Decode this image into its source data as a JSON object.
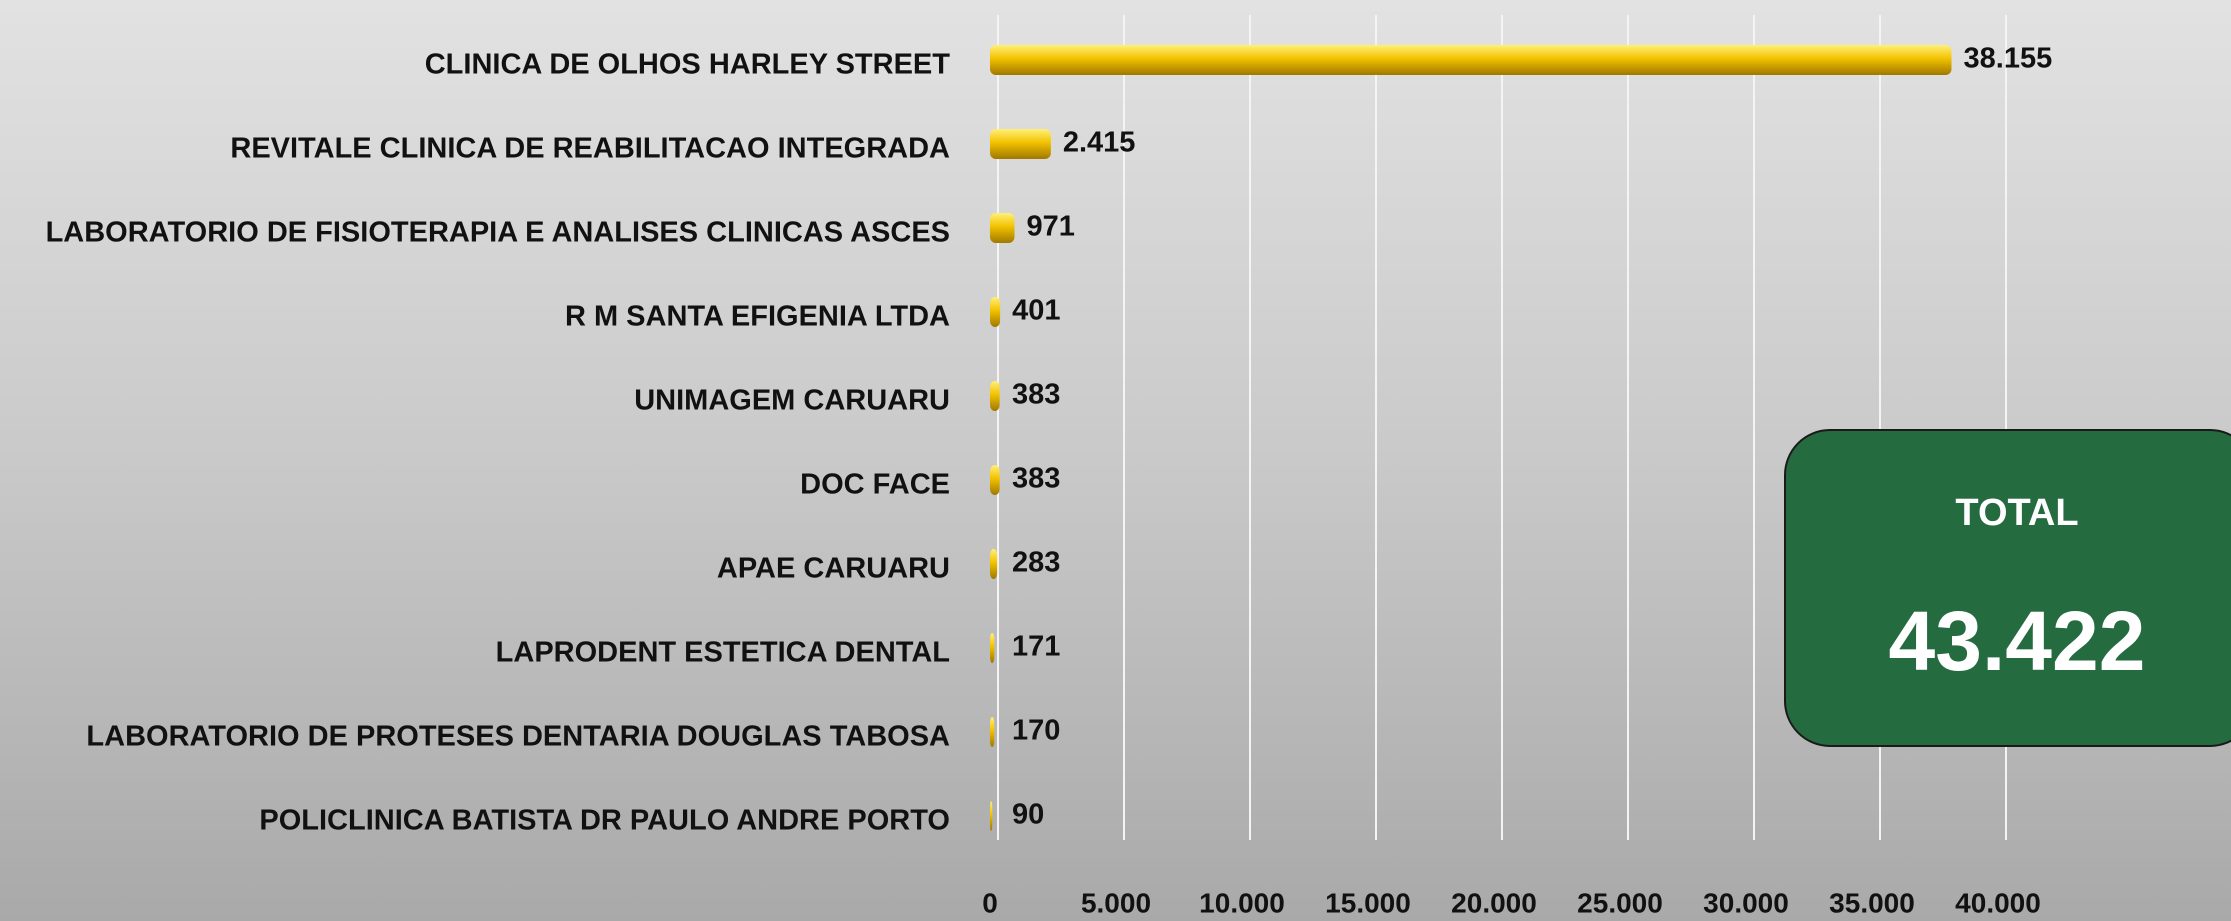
{
  "chart_data": {
    "type": "hbar",
    "categories": [
      "CLINICA DE OLHOS HARLEY STREET",
      "REVITALE CLINICA DE REABILITACAO INTEGRADA",
      "LABORATORIO DE FISIOTERAPIA E ANALISES CLINICAS ASCES",
      "R M SANTA EFIGENIA LTDA",
      "UNIMAGEM CARUARU",
      "DOC FACE",
      "APAE CARUARU",
      "LAPRODENT ESTETICA DENTAL",
      "LABORATORIO DE PROTESES DENTARIA DOUGLAS TABOSA",
      "POLICLINICA BATISTA DR PAULO ANDRE PORTO"
    ],
    "values": [
      38155,
      2415,
      971,
      401,
      383,
      383,
      283,
      171,
      170,
      90
    ],
    "value_labels": [
      "38.155",
      "2.415",
      "971",
      "401",
      "383",
      "383",
      "283",
      "171",
      "170",
      "90"
    ],
    "color": "#f2c200",
    "xlim": [
      0,
      40000
    ],
    "xticks": [
      0,
      {
        "value": 5000,
        "label": "5.000"
      },
      {
        "value": 10000,
        "label": "10.000"
      },
      {
        "value": 15000,
        "label": "15.000"
      },
      {
        "value": 20000,
        "label": "20.000"
      },
      {
        "value": 25000,
        "label": "25.000"
      },
      {
        "value": 30000,
        "label": "30.000"
      },
      {
        "value": 35000,
        "label": "35.000"
      },
      {
        "value": 40000,
        "label": "40.000"
      }
    ],
    "grid": true,
    "total": {
      "title": "TOTAL",
      "text": "43.422"
    }
  }
}
